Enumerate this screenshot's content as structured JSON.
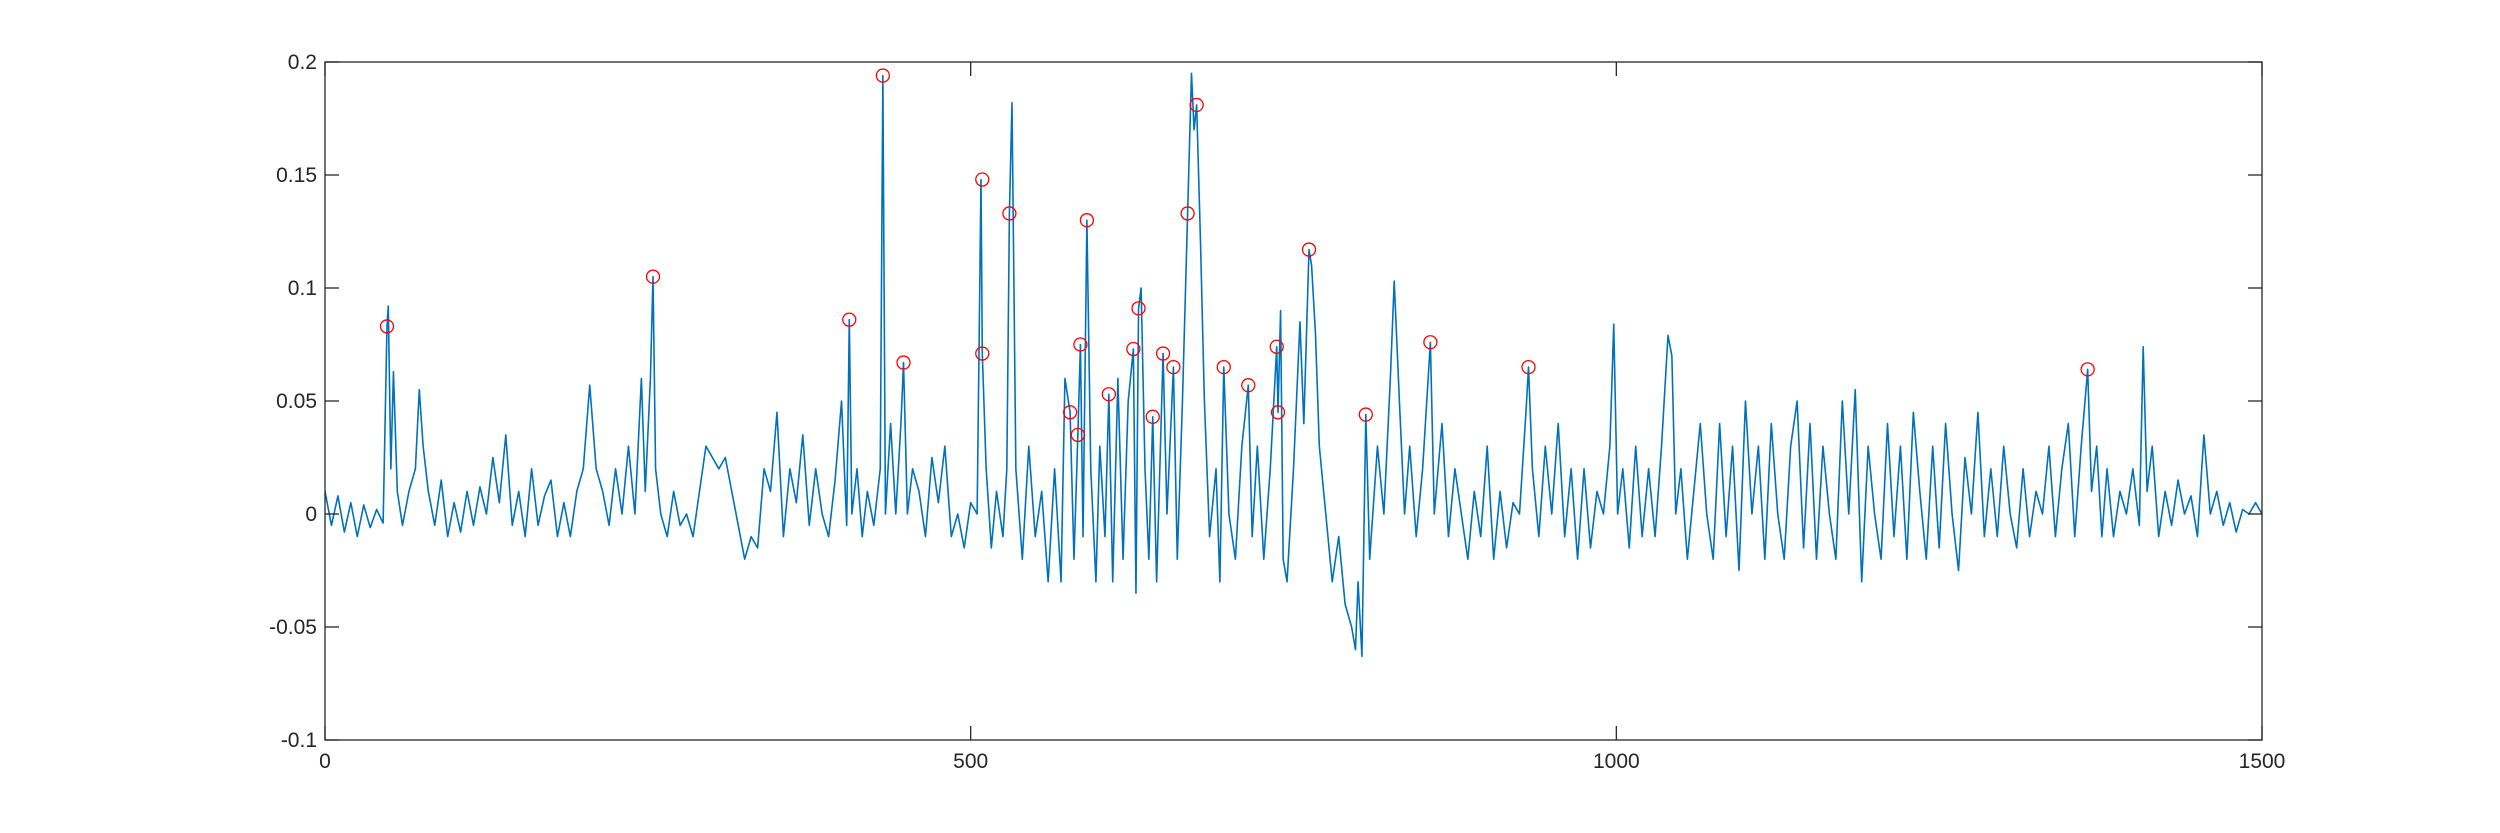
{
  "chart_data": {
    "type": "line",
    "xlim": [
      0,
      1500
    ],
    "xticks": [
      0,
      500,
      1000,
      1500
    ],
    "ylim": [
      -0.1,
      0.2
    ],
    "yticks": [
      -0.1,
      -0.05,
      0,
      0.05,
      0.1,
      0.15,
      0.2
    ],
    "grid": false,
    "box": true,
    "series": [
      {
        "color": "#0072bd",
        "marker": "none",
        "x": [
          0,
          5,
          10,
          15,
          20,
          25,
          30,
          35,
          40,
          45,
          48,
          49,
          51,
          53,
          56,
          60,
          65,
          70,
          73,
          76,
          80,
          85,
          90,
          95,
          100,
          105,
          110,
          115,
          120,
          125,
          130,
          135,
          140,
          145,
          150,
          155,
          160,
          165,
          170,
          175,
          180,
          185,
          190,
          195,
          200,
          205,
          210,
          215,
          220,
          225,
          230,
          235,
          240,
          245,
          248,
          252,
          254,
          256,
          260,
          265,
          270,
          275,
          280,
          285,
          290,
          295,
          300,
          305,
          310,
          315,
          320,
          325,
          330,
          335,
          340,
          345,
          350,
          355,
          360,
          365,
          370,
          375,
          380,
          385,
          390,
          395,
          400,
          404,
          406,
          408,
          412,
          416,
          420,
          425,
          430,
          432,
          434,
          438,
          442,
          446,
          448,
          451,
          455,
          460,
          465,
          470,
          475,
          480,
          485,
          490,
          495,
          500,
          505,
          508,
          509,
          512,
          516,
          520,
          525,
          528,
          530,
          532,
          535,
          540,
          545,
          550,
          555,
          560,
          565,
          570,
          573,
          577,
          580,
          583,
          585,
          587,
          590,
          593,
          597,
          600,
          604,
          607,
          610,
          614,
          618,
          622,
          626,
          628,
          630,
          632,
          635,
          638,
          641,
          644,
          649,
          652,
          657,
          660,
          664,
          668,
          671,
          673,
          675,
          678,
          681,
          685,
          690,
          693,
          696,
          700,
          705,
          710,
          715,
          718,
          722,
          727,
          732,
          737,
          738,
          740,
          742,
          745,
          750,
          755,
          758,
          762,
          764,
          767,
          770,
          775,
          780,
          785,
          790,
          795,
          798,
          800,
          803,
          806,
          809,
          815,
          820,
          825,
          828,
          832,
          836,
          840,
          845,
          850,
          856,
          859,
          865,
          870,
          875,
          880,
          885,
          890,
          895,
          900,
          905,
          910,
          915,
          920,
          925,
          930,
          932,
          935,
          940,
          945,
          950,
          955,
          960,
          965,
          970,
          975,
          980,
          985,
          990,
          995,
          998,
          1001,
          1005,
          1010,
          1015,
          1020,
          1025,
          1030,
          1035,
          1040,
          1043,
          1046,
          1050,
          1055,
          1060,
          1065,
          1070,
          1075,
          1080,
          1085,
          1090,
          1095,
          1100,
          1105,
          1110,
          1115,
          1120,
          1125,
          1130,
          1135,
          1140,
          1145,
          1150,
          1155,
          1160,
          1165,
          1170,
          1175,
          1180,
          1185,
          1190,
          1195,
          1200,
          1205,
          1210,
          1215,
          1220,
          1225,
          1230,
          1235,
          1240,
          1245,
          1250,
          1255,
          1260,
          1265,
          1270,
          1275,
          1280,
          1285,
          1290,
          1295,
          1300,
          1305,
          1310,
          1315,
          1320,
          1325,
          1330,
          1335,
          1340,
          1345,
          1350,
          1355,
          1360,
          1365,
          1368,
          1372,
          1376,
          1380,
          1385,
          1390,
          1395,
          1400,
          1405,
          1408,
          1411,
          1415,
          1420,
          1425,
          1430,
          1435,
          1440,
          1445,
          1450,
          1455,
          1460,
          1465,
          1470,
          1475,
          1480,
          1485,
          1490,
          1495,
          1500
        ],
        "values": [
          0.01,
          -0.005,
          0.008,
          -0.008,
          0.005,
          -0.01,
          0.004,
          -0.006,
          0.002,
          -0.004,
          0.083,
          0.092,
          0.02,
          0.063,
          0.01,
          -0.005,
          0.01,
          0.02,
          0.055,
          0.03,
          0.01,
          -0.005,
          0.015,
          -0.01,
          0.005,
          -0.008,
          0.01,
          -0.005,
          0.012,
          0,
          0.025,
          0.005,
          0.035,
          -0.005,
          0.01,
          -0.01,
          0.02,
          -0.005,
          0.008,
          0.015,
          -0.01,
          0.005,
          -0.01,
          0.01,
          0.02,
          0.057,
          0.02,
          0.01,
          -0.005,
          0.02,
          0,
          0.03,
          0,
          0.06,
          0.01,
          0.06,
          0.105,
          0.02,
          0,
          -0.01,
          0.01,
          -0.005,
          0,
          -0.01,
          0.01,
          0.03,
          0.025,
          0.02,
          0.025,
          0.01,
          -0.005,
          -0.02,
          -0.01,
          -0.015,
          0.02,
          0.01,
          0.045,
          -0.01,
          0.02,
          0.005,
          0.035,
          -0.005,
          0.02,
          0,
          -0.01,
          0.015,
          0.05,
          -0.005,
          0.086,
          0,
          0.02,
          -0.01,
          0.01,
          -0.005,
          0.02,
          0.194,
          0,
          0.04,
          0,
          0.04,
          0.067,
          0,
          0.02,
          0.01,
          -0.01,
          0.025,
          0.005,
          0.03,
          -0.01,
          0,
          -0.015,
          0.005,
          0,
          0.148,
          0.071,
          0.02,
          -0.015,
          0.01,
          -0.01,
          0.02,
          0.133,
          0.182,
          0.02,
          -0.02,
          0.03,
          -0.01,
          0.01,
          -0.03,
          0.02,
          -0.03,
          0.06,
          0.045,
          -0.02,
          0.035,
          0.075,
          -0.01,
          0.13,
          0.02,
          -0.03,
          0.03,
          -0.01,
          0.053,
          -0.03,
          0.06,
          -0.02,
          0.05,
          0.073,
          -0.035,
          0.091,
          0.1,
          0.02,
          -0.02,
          0.043,
          -0.03,
          0.071,
          0,
          0.065,
          -0.02,
          0.05,
          0.133,
          0.195,
          0.17,
          0.181,
          0.12,
          0.05,
          -0.01,
          0.02,
          -0.03,
          0.065,
          0,
          -0.02,
          0.03,
          0.057,
          -0.01,
          0.03,
          -0.02,
          0.02,
          0.074,
          0.045,
          0.09,
          -0.02,
          -0.03,
          0.02,
          0.085,
          0.04,
          0.117,
          0.11,
          0.08,
          0.03,
          0,
          -0.03,
          -0.01,
          -0.04,
          -0.05,
          -0.06,
          -0.03,
          -0.063,
          0.044,
          -0.02,
          0.03,
          0,
          0.06,
          0.103,
          0.05,
          0,
          0.03,
          -0.01,
          0.02,
          0.076,
          0,
          0.04,
          -0.01,
          0.02,
          0,
          -0.02,
          0.01,
          -0.01,
          0.03,
          -0.02,
          0.01,
          -0.015,
          0.005,
          0,
          0.045,
          0.065,
          0.02,
          -0.01,
          0.03,
          0,
          0.04,
          -0.01,
          0.02,
          -0.02,
          0.02,
          -0.015,
          0.01,
          0,
          0.03,
          0.084,
          0,
          0.02,
          -0.015,
          0.03,
          -0.01,
          0.02,
          -0.01,
          0.03,
          0.079,
          0.07,
          0,
          0.02,
          -0.02,
          0.01,
          0.04,
          0,
          -0.02,
          0.04,
          -0.01,
          0.03,
          -0.025,
          0.05,
          0,
          0.03,
          -0.02,
          0.04,
          0,
          -0.02,
          0.03,
          0.05,
          -0.015,
          0.04,
          -0.02,
          0.03,
          0,
          -0.02,
          0.05,
          0,
          0.055,
          -0.03,
          0.03,
          0,
          -0.02,
          0.04,
          -0.01,
          0.03,
          -0.02,
          0.045,
          0.01,
          -0.02,
          0.03,
          -0.015,
          0.04,
          0,
          -0.025,
          0.025,
          0,
          0.045,
          -0.01,
          0.02,
          -0.01,
          0.03,
          0,
          -0.015,
          0.02,
          -0.01,
          0.01,
          0,
          0.03,
          -0.01,
          0.02,
          0.04,
          -0.01,
          0.03,
          0.064,
          0.01,
          0.03,
          -0.01,
          0.02,
          -0.01,
          0.01,
          0,
          0.02,
          -0.005,
          0.074,
          0.01,
          0.03,
          -0.01,
          0.01,
          -0.005,
          0.015,
          0,
          0.008,
          -0.01,
          0.035,
          0,
          0.01,
          -0.005,
          0.005,
          -0.008,
          0.002,
          0,
          0.005,
          0
        ]
      },
      {
        "color": "#ff0000",
        "marker": "circle",
        "x": [
          48,
          254,
          406,
          432,
          448,
          509,
          509,
          530,
          577,
          583,
          585,
          590,
          607,
          626,
          630,
          641,
          649,
          657,
          668,
          675,
          696,
          715,
          737,
          738,
          762,
          806,
          856,
          932,
          1365
        ],
        "values": [
          0.083,
          0.105,
          0.086,
          0.194,
          0.067,
          0.148,
          0.071,
          0.133,
          0.045,
          0.035,
          0.075,
          0.13,
          0.053,
          0.073,
          0.091,
          0.043,
          0.071,
          0.065,
          0.133,
          0.181,
          0.065,
          0.057,
          0.074,
          0.045,
          0.117,
          0.044,
          0.076,
          0.065,
          0.064
        ]
      }
    ]
  }
}
